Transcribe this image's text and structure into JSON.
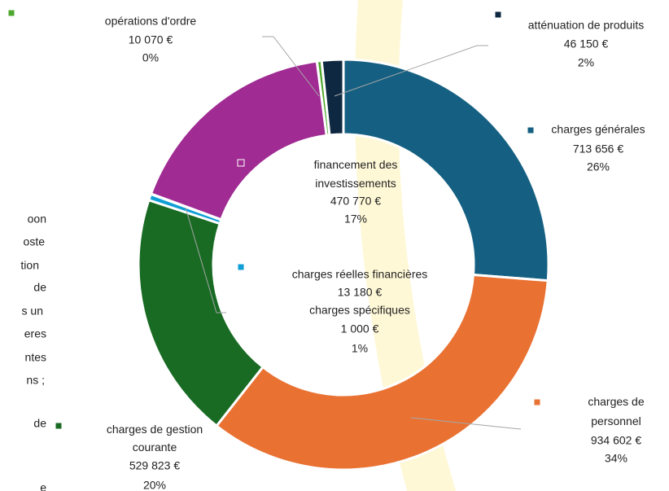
{
  "chart_data": {
    "type": "donut",
    "categories": [
      "charges générales",
      "charges de personnel",
      "charges de gestion courante",
      "charges réelles financières",
      "charges spécifiques",
      "financement des investissements",
      "opérations d'ordre",
      "atténuation de produits"
    ],
    "values": [
      713656,
      934602,
      529823,
      13180,
      1000,
      470770,
      10070,
      46150
    ],
    "value_labels": [
      "713 656 €",
      "934 602 €",
      "529 823 €",
      "13 180 €",
      "1 000 €",
      "470 770 €",
      "10 070 €",
      "46 150 €"
    ],
    "percent_labels": [
      "26%",
      "34%",
      "20%",
      "1%",
      null,
      "17%",
      "0%",
      "2%"
    ],
    "colors": [
      "#156082",
      "#e97132",
      "#196b24",
      "#0f9ed5",
      "#7fd3f0",
      "#a02b93",
      "#4ea72e",
      "#0e2841"
    ]
  },
  "background_text": [
    "oon",
    "oste",
    "tion",
    "de",
    "s un",
    "eres",
    "ntes",
    "ns ;",
    "de",
    "e"
  ]
}
